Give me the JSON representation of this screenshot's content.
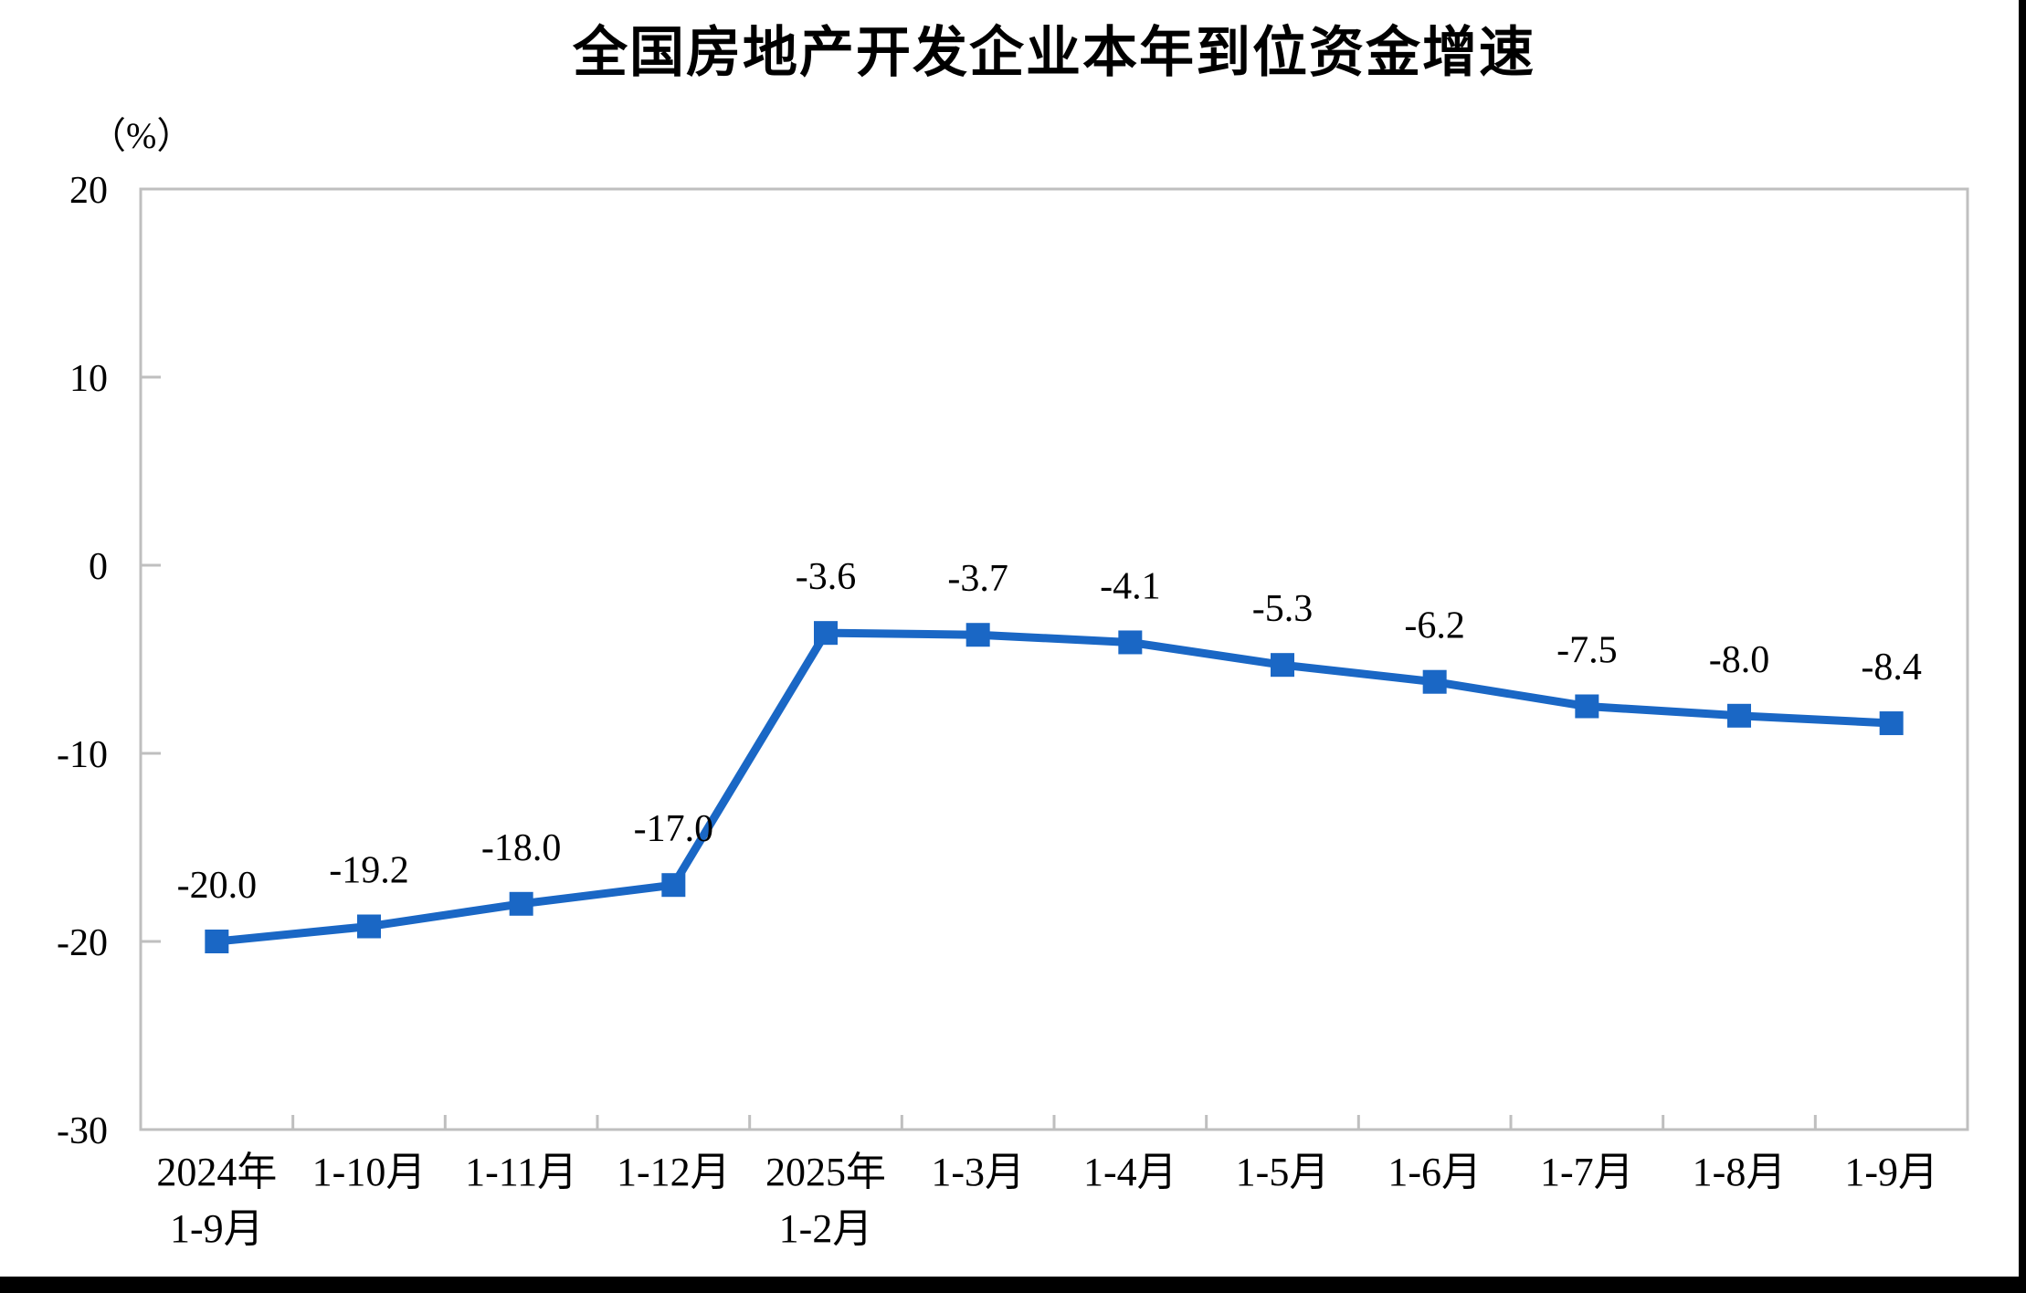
{
  "chart_data": {
    "type": "line",
    "title": "全国房地产开发企业本年到位资金增速",
    "ylabel": "（%）",
    "xlabel": "",
    "categories": [
      [
        "2024年",
        "1-9月"
      ],
      [
        "1-10月"
      ],
      [
        "1-11月"
      ],
      [
        "1-12月"
      ],
      [
        "2025年",
        "1-2月"
      ],
      [
        "1-3月"
      ],
      [
        "1-4月"
      ],
      [
        "1-5月"
      ],
      [
        "1-6月"
      ],
      [
        "1-7月"
      ],
      [
        "1-8月"
      ],
      [
        "1-9月"
      ]
    ],
    "values": [
      -20.0,
      -19.2,
      -18.0,
      -17.0,
      -3.6,
      -3.7,
      -4.1,
      -5.3,
      -6.2,
      -7.5,
      -8.0,
      -8.4
    ],
    "point_labels": [
      "-20.0",
      "-19.2",
      "-18.0",
      "-17.0",
      "-3.6",
      "-3.7",
      "-4.1",
      "-5.3",
      "-6.2",
      "-7.5",
      "-8.0",
      "-8.4"
    ],
    "ylim": [
      -30,
      20
    ],
    "y_ticks": [
      20,
      10,
      0,
      -10,
      -20,
      -30
    ],
    "y_tick_labels": [
      "20",
      "10",
      "0",
      "-10",
      "-20",
      "-30"
    ],
    "grid": false,
    "legend": false,
    "marker": "square",
    "line_color": "#1a67c5",
    "axis_color": "#bfbfbf",
    "text_color": "#000000"
  }
}
